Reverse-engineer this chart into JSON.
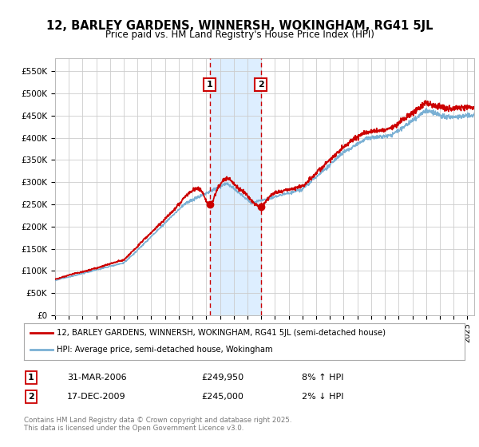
{
  "title_line1": "12, BARLEY GARDENS, WINNERSH, WOKINGHAM, RG41 5JL",
  "title_line2": "Price paid vs. HM Land Registry's House Price Index (HPI)",
  "ylim": [
    0,
    580000
  ],
  "yticks": [
    0,
    50000,
    100000,
    150000,
    200000,
    250000,
    300000,
    350000,
    400000,
    450000,
    500000,
    550000
  ],
  "ytick_labels": [
    "£0",
    "£50K",
    "£100K",
    "£150K",
    "£200K",
    "£250K",
    "£300K",
    "£350K",
    "£400K",
    "£450K",
    "£500K",
    "£550K"
  ],
  "xmin": 1995,
  "xmax": 2025.5,
  "sale1_date": 2006.25,
  "sale1_price": 249950,
  "sale2_date": 2009.96,
  "sale2_price": 245000,
  "shade_color": "#ddeeff",
  "vline_color": "#cc0000",
  "red_line_color": "#cc0000",
  "blue_line_color": "#7ab0d4",
  "legend_label1": "12, BARLEY GARDENS, WINNERSH, WOKINGHAM, RG41 5JL (semi-detached house)",
  "legend_label2": "HPI: Average price, semi-detached house, Wokingham",
  "table_row1": [
    "1",
    "31-MAR-2006",
    "£249,950",
    "8% ↑ HPI"
  ],
  "table_row2": [
    "2",
    "17-DEC-2009",
    "£245,000",
    "2% ↓ HPI"
  ],
  "footer": "Contains HM Land Registry data © Crown copyright and database right 2025.\nThis data is licensed under the Open Government Licence v3.0.",
  "background_color": "#ffffff",
  "grid_color": "#cccccc"
}
